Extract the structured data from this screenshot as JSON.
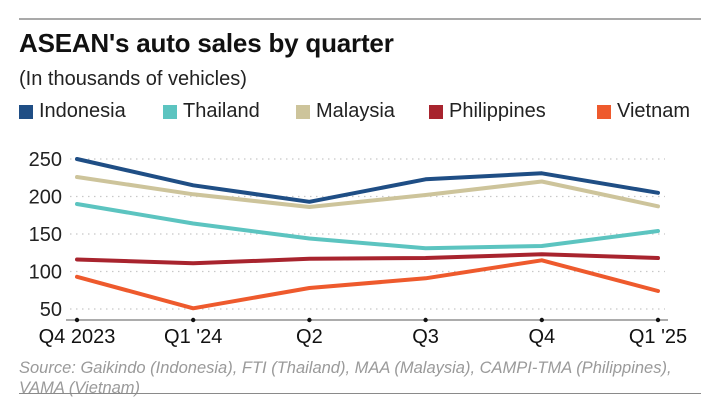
{
  "chart_data": {
    "type": "line",
    "title": "ASEAN's auto sales by quarter",
    "subtitle": "(In thousands of vehicles)",
    "xlabel": "",
    "ylabel": "",
    "categories": [
      "Q4 2023",
      "Q1 '24",
      "Q2",
      "Q3",
      "Q4",
      "Q1 '25"
    ],
    "ylim": [
      40,
      260
    ],
    "yticks": [
      50,
      100,
      150,
      200,
      250
    ],
    "grid": "horizontal-dotted",
    "legend_position": "top-left",
    "series": [
      {
        "name": "Indonesia",
        "color": "#1f4e85",
        "values": [
          250,
          215,
          193,
          223,
          231,
          205
        ]
      },
      {
        "name": "Thailand",
        "color": "#5cc4c0",
        "values": [
          190,
          164,
          144,
          131,
          134,
          154
        ]
      },
      {
        "name": "Malaysia",
        "color": "#cdc49b",
        "values": [
          226,
          203,
          186,
          202,
          220,
          187
        ]
      },
      {
        "name": "Philippines",
        "color": "#a8242e",
        "values": [
          116,
          111,
          117,
          118,
          123,
          118
        ]
      },
      {
        "name": "Vietnam",
        "color": "#ee5a2d",
        "values": [
          93,
          51,
          78,
          91,
          115,
          74
        ]
      }
    ]
  },
  "source": "Source: Gaikindo (Indonesia), FTI (Thailand), MAA (Malaysia), CAMPI-TMA (Philippines), VAMA (Vietnam)"
}
